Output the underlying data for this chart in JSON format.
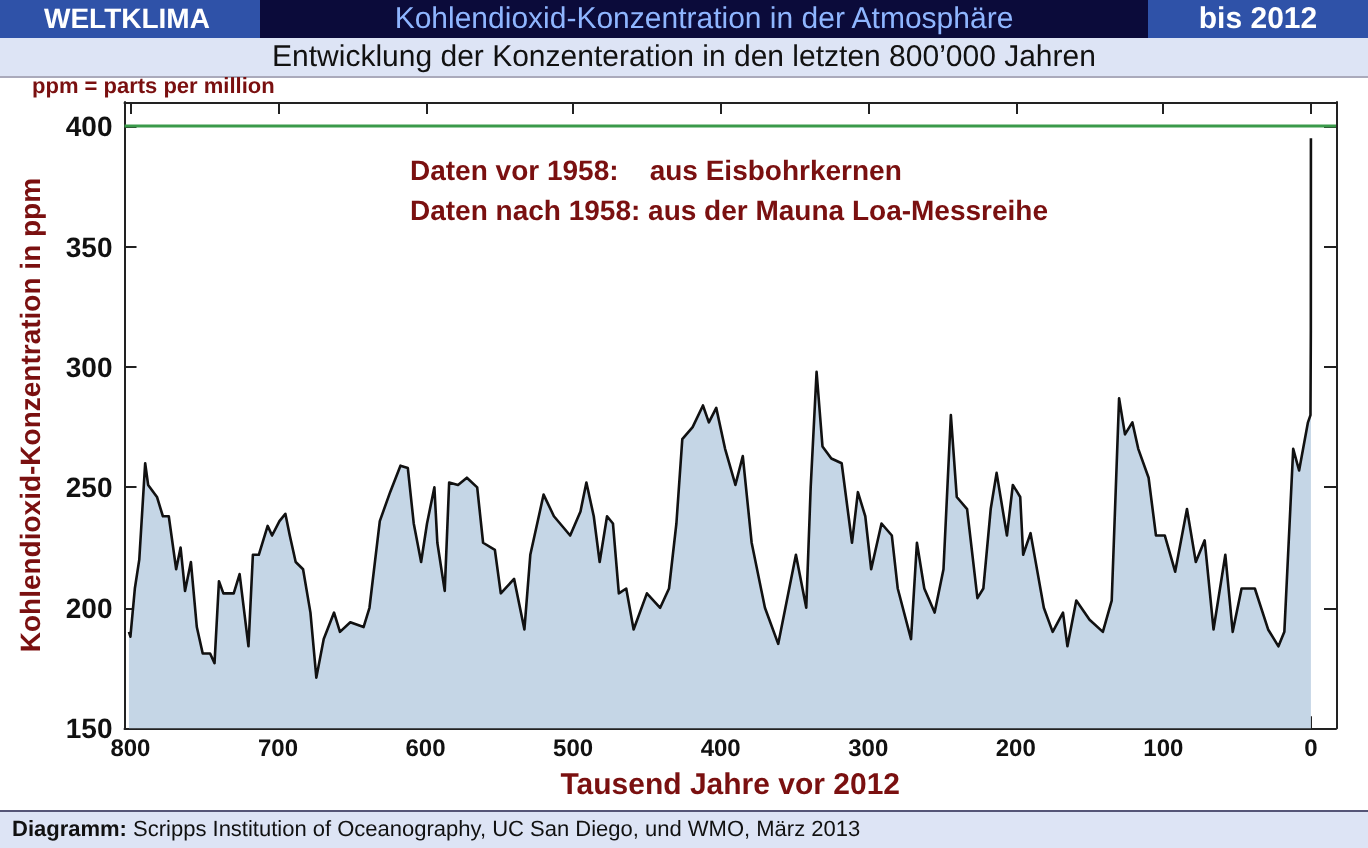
{
  "chart_data": {
    "type": "area",
    "title": "Kohlendioxid-Konzentration in der Atmosphäre",
    "subtitle": "Entwicklung der Konzenteration in den letzten 800’000 Jahren",
    "xlabel": "Tausend Jahre vor 2012",
    "ylabel": "Kohlendioxid-Konzentration in ppm",
    "annotations": [
      "WELTKLIMA",
      "bis 2012",
      "ppm = parts per million",
      "Daten vor 1958:    aus Eisbohrkernen",
      "Daten nach 1958: aus der Mauna Loa-Messreihe",
      "Diagramm: Scripps Institution of Oceanography, UC San Diego, und WMO,  März 2013"
    ],
    "xlim": [
      804,
      -17
    ],
    "xticks": [
      800,
      700,
      600,
      500,
      400,
      300,
      200,
      100,
      0
    ],
    "ylim": [
      150,
      410
    ],
    "yticks": [
      150,
      200,
      250,
      300,
      350,
      400
    ],
    "ref_lines": [
      {
        "axis": "y",
        "value": 400,
        "color": "#3a9a4a"
      }
    ],
    "series": [
      {
        "color": "#c5d6e6",
        "x": [
          801,
          800,
          797,
          794,
          790,
          788,
          782,
          778,
          774,
          769,
          766,
          763,
          759,
          755,
          751,
          746,
          743,
          740,
          737,
          730,
          726,
          720,
          717,
          713,
          707,
          704,
          699,
          695,
          692,
          688,
          683,
          678,
          674,
          669,
          662,
          658,
          651,
          642,
          638,
          631,
          624,
          617,
          612,
          608,
          603,
          599,
          594,
          592,
          587,
          584,
          578,
          572,
          565,
          561,
          553,
          549,
          540,
          533,
          529,
          520,
          513,
          502,
          495,
          491,
          486,
          482,
          477,
          473,
          469,
          464,
          459,
          450,
          441,
          435,
          430,
          426,
          419,
          412,
          408,
          403,
          397,
          390,
          385,
          379,
          370,
          361,
          349,
          342,
          339,
          335,
          331,
          325,
          318,
          311,
          307,
          302,
          298,
          291,
          284,
          280,
          271,
          267,
          262,
          255,
          249,
          244,
          240,
          233,
          226,
          222,
          217,
          213,
          206,
          202,
          197,
          195,
          190,
          181,
          175,
          168,
          165,
          159,
          150,
          141,
          135,
          130,
          126,
          121,
          117,
          110,
          105,
          99,
          92,
          84,
          78,
          72,
          66,
          58,
          53,
          47,
          38,
          29,
          22,
          18,
          12,
          8,
          2,
          0.3,
          0.05,
          0
        ],
        "values": [
          190,
          188,
          208,
          220,
          260,
          251,
          246,
          238,
          238,
          216,
          225,
          207,
          219,
          192,
          181,
          181,
          177,
          211,
          206,
          206,
          214,
          184,
          222,
          222,
          234,
          230,
          236,
          239,
          230,
          219,
          216,
          198,
          171,
          187,
          198,
          190,
          194,
          192,
          200,
          236,
          248,
          259,
          258,
          235,
          219,
          235,
          250,
          227,
          207,
          252,
          251,
          254,
          250,
          227,
          224,
          206,
          212,
          191,
          222,
          247,
          238,
          230,
          240,
          252,
          238,
          219,
          238,
          235,
          206,
          208,
          191,
          206,
          200,
          208,
          235,
          270,
          275,
          284,
          277,
          283,
          266,
          251,
          263,
          227,
          200,
          185,
          222,
          200,
          250,
          298,
          267,
          262,
          260,
          227,
          248,
          238,
          216,
          235,
          230,
          208,
          187,
          227,
          208,
          198,
          216,
          280,
          246,
          241,
          204,
          208,
          241,
          256,
          230,
          251,
          246,
          222,
          231,
          200,
          190,
          198,
          184,
          203,
          195,
          190,
          203,
          287,
          272,
          277,
          266,
          254,
          230,
          230,
          215,
          241,
          219,
          228,
          191,
          222,
          190,
          208,
          208,
          191,
          184,
          190,
          266,
          257,
          277,
          280,
          315,
          395
        ]
      }
    ]
  }
}
